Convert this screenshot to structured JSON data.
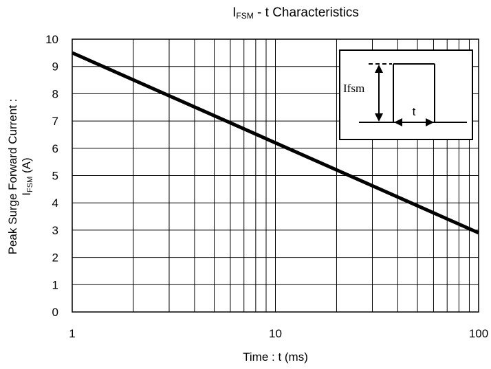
{
  "chart_data": {
    "type": "line",
    "title_main": "I",
    "title_sub": "FSM",
    "title_rest": " - t  Characteristics",
    "xlabel": "Time : t (ms)",
    "ylabel_line1": "Peak Surge Forward Current :",
    "ylabel_main": "I",
    "ylabel_sub": "FSM",
    "ylabel_rest": "  (A)",
    "x_scale": "log",
    "xlim": [
      1,
      100
    ],
    "ylim": [
      0,
      10
    ],
    "x_ticks": [
      "1",
      "10",
      "100"
    ],
    "y_ticks": [
      "0",
      "1",
      "2",
      "3",
      "4",
      "5",
      "6",
      "7",
      "8",
      "9",
      "10"
    ],
    "grid": true,
    "series": [
      {
        "x": [
          1,
          100
        ],
        "y": [
          9.5,
          2.9
        ]
      }
    ],
    "inset": {
      "label_ifsm": "Ifsm",
      "label_t": "t"
    },
    "colors": {
      "line": "#000000",
      "grid": "#000000",
      "background": "#ffffff"
    }
  }
}
